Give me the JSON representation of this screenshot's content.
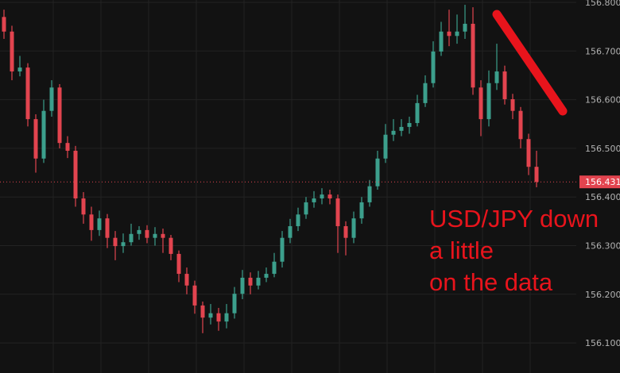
{
  "chart_data": {
    "type": "candlestick",
    "title": "",
    "xlabel": "",
    "ylabel": "",
    "ylim": [
      156.08,
      156.805
    ],
    "y_ticks": [
      "156.800",
      "156.700",
      "156.600",
      "156.500",
      "156.400",
      "156.300",
      "156.200",
      "156.100"
    ],
    "grid": true,
    "last_price": "156.431",
    "colors": {
      "up": "#3c9f8c",
      "down": "#e2444f",
      "background": "#121212",
      "grid": "#232323",
      "last_price": "#e2444f",
      "annotation": "#e8141c"
    },
    "ohlc": [
      [
        156.77,
        156.785,
        156.725,
        156.74
      ],
      [
        156.74,
        156.752,
        156.64,
        156.658
      ],
      [
        156.658,
        156.69,
        156.648,
        156.666
      ],
      [
        156.666,
        156.675,
        156.545,
        156.56
      ],
      [
        156.56,
        156.57,
        156.45,
        156.479
      ],
      [
        156.479,
        156.6,
        156.47,
        156.577
      ],
      [
        156.577,
        156.64,
        156.565,
        156.625
      ],
      [
        156.625,
        156.632,
        156.5,
        156.511
      ],
      [
        156.511,
        156.525,
        156.48,
        156.495
      ],
      [
        156.495,
        156.505,
        156.38,
        156.397
      ],
      [
        156.397,
        156.41,
        156.345,
        156.364
      ],
      [
        156.364,
        156.38,
        156.31,
        156.332
      ],
      [
        156.332,
        156.372,
        156.32,
        156.356
      ],
      [
        156.356,
        156.365,
        156.295,
        156.316
      ],
      [
        156.316,
        156.33,
        156.27,
        156.299
      ],
      [
        156.299,
        156.325,
        156.285,
        156.307
      ],
      [
        156.307,
        156.345,
        156.3,
        156.324
      ],
      [
        156.324,
        156.34,
        156.312,
        156.332
      ],
      [
        156.332,
        156.342,
        156.305,
        156.316
      ],
      [
        156.316,
        156.338,
        156.3,
        156.324
      ],
      [
        156.324,
        156.335,
        156.285,
        156.316
      ],
      [
        156.316,
        156.322,
        156.27,
        156.283
      ],
      [
        156.283,
        156.29,
        156.225,
        156.242
      ],
      [
        156.242,
        156.255,
        156.2,
        156.218
      ],
      [
        156.218,
        156.228,
        156.16,
        156.177
      ],
      [
        156.177,
        156.185,
        156.12,
        156.152
      ],
      [
        156.152,
        156.18,
        156.138,
        156.161
      ],
      [
        156.161,
        156.172,
        156.125,
        156.144
      ],
      [
        156.144,
        156.18,
        156.13,
        156.161
      ],
      [
        156.161,
        156.215,
        156.15,
        156.201
      ],
      [
        156.201,
        156.25,
        156.19,
        156.234
      ],
      [
        156.234,
        156.245,
        156.2,
        156.218
      ],
      [
        156.218,
        156.248,
        156.21,
        156.234
      ],
      [
        156.234,
        156.255,
        156.225,
        156.242
      ],
      [
        156.242,
        156.285,
        156.235,
        156.267
      ],
      [
        156.267,
        156.33,
        156.255,
        156.316
      ],
      [
        156.316,
        156.355,
        156.305,
        156.34
      ],
      [
        156.34,
        156.378,
        156.33,
        156.364
      ],
      [
        156.364,
        156.4,
        156.355,
        156.389
      ],
      [
        156.389,
        156.412,
        156.378,
        156.397
      ],
      [
        156.397,
        156.418,
        156.385,
        156.405
      ],
      [
        156.405,
        156.415,
        156.385,
        156.397
      ],
      [
        156.397,
        156.405,
        156.285,
        156.34
      ],
      [
        156.34,
        156.35,
        156.28,
        156.316
      ],
      [
        156.316,
        156.37,
        156.305,
        156.356
      ],
      [
        156.356,
        156.4,
        156.345,
        156.389
      ],
      [
        156.389,
        156.435,
        156.38,
        156.422
      ],
      [
        156.422,
        156.495,
        156.415,
        156.479
      ],
      [
        156.479,
        156.55,
        156.47,
        156.528
      ],
      [
        156.528,
        156.56,
        156.515,
        156.536
      ],
      [
        156.536,
        156.56,
        156.525,
        156.544
      ],
      [
        156.544,
        156.565,
        156.53,
        156.552
      ],
      [
        156.552,
        156.61,
        156.545,
        156.593
      ],
      [
        156.593,
        156.65,
        156.585,
        156.634
      ],
      [
        156.634,
        156.72,
        156.625,
        156.699
      ],
      [
        156.699,
        156.76,
        156.69,
        156.74
      ],
      [
        156.74,
        156.785,
        156.71,
        156.731
      ],
      [
        156.731,
        156.775,
        156.715,
        156.74
      ],
      [
        156.74,
        156.795,
        156.725,
        156.756
      ],
      [
        156.756,
        156.79,
        156.61,
        156.625
      ],
      [
        156.625,
        156.64,
        156.525,
        156.56
      ],
      [
        156.56,
        156.66,
        156.545,
        156.634
      ],
      [
        156.634,
        156.715,
        156.62,
        156.658
      ],
      [
        156.658,
        156.67,
        156.59,
        156.601
      ],
      [
        156.601,
        156.612,
        156.56,
        156.577
      ],
      [
        156.577,
        156.585,
        156.5,
        156.519
      ],
      [
        156.519,
        156.53,
        156.445,
        156.462
      ],
      [
        156.462,
        156.495,
        156.42,
        156.431
      ]
    ]
  },
  "annotation": {
    "lines": [
      "USD/JPY down",
      "a little",
      "on the data"
    ],
    "arrow": "down-trend-line"
  }
}
